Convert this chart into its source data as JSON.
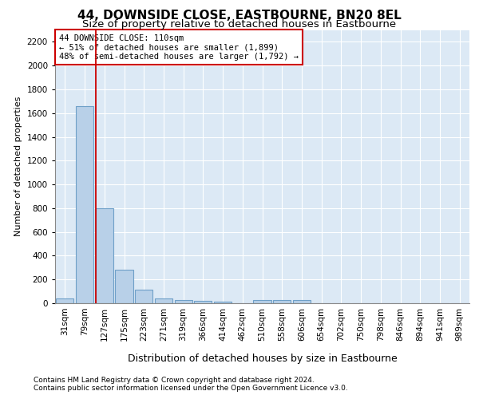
{
  "title": "44, DOWNSIDE CLOSE, EASTBOURNE, BN20 8EL",
  "subtitle": "Size of property relative to detached houses in Eastbourne",
  "xlabel": "Distribution of detached houses by size in Eastbourne",
  "ylabel": "Number of detached properties",
  "categories": [
    "31sqm",
    "79sqm",
    "127sqm",
    "175sqm",
    "223sqm",
    "271sqm",
    "319sqm",
    "366sqm",
    "414sqm",
    "462sqm",
    "510sqm",
    "558sqm",
    "606sqm",
    "654sqm",
    "702sqm",
    "750sqm",
    "798sqm",
    "846sqm",
    "894sqm",
    "941sqm",
    "989sqm"
  ],
  "values": [
    40,
    1660,
    800,
    280,
    115,
    40,
    25,
    20,
    15,
    0,
    30,
    30,
    30,
    0,
    0,
    0,
    0,
    0,
    0,
    0,
    0
  ],
  "bar_color": "#b8d0e8",
  "bar_edgecolor": "#6fa0c8",
  "annotation_box_text": "44 DOWNSIDE CLOSE: 110sqm\n← 51% of detached houses are smaller (1,899)\n48% of semi-detached houses are larger (1,792) →",
  "annotation_box_color": "#ffffff",
  "annotation_box_edgecolor": "#cc0000",
  "vline_x_index": 2,
  "vline_color": "#cc0000",
  "ylim": [
    0,
    2300
  ],
  "yticks": [
    0,
    200,
    400,
    600,
    800,
    1000,
    1200,
    1400,
    1600,
    1800,
    2000,
    2200
  ],
  "background_color": "#dce9f5",
  "footer_line1": "Contains HM Land Registry data © Crown copyright and database right 2024.",
  "footer_line2": "Contains public sector information licensed under the Open Government Licence v3.0.",
  "title_fontsize": 11,
  "subtitle_fontsize": 9.5,
  "xlabel_fontsize": 9,
  "ylabel_fontsize": 8,
  "tick_fontsize": 7.5,
  "annotation_fontsize": 7.5,
  "footer_fontsize": 6.5
}
